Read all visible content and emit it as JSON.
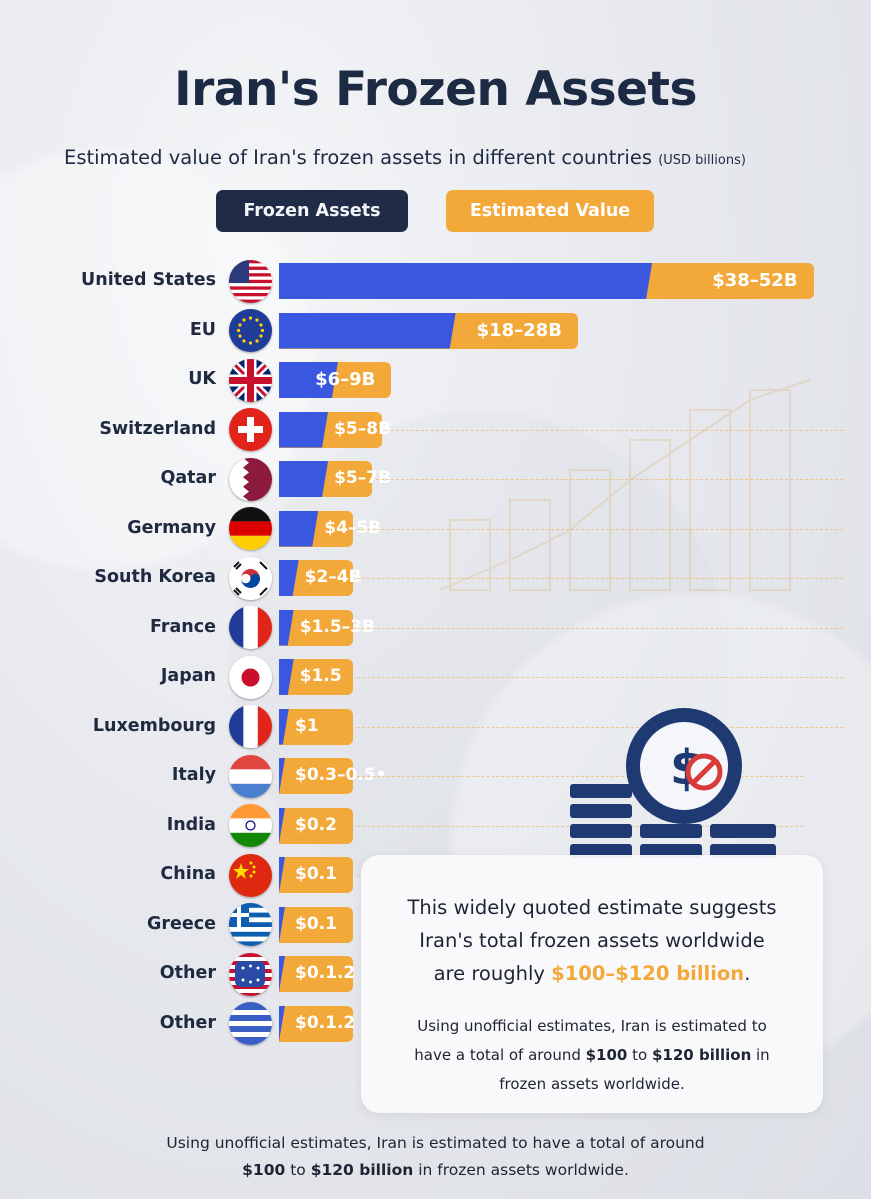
{
  "title": "Iran's Frozen Assets",
  "subtitle": "Estimated value of Iran's frozen assets in different countries",
  "subtitle_unit": "(USD billions)",
  "legend": {
    "frozen": "Frozen Assets",
    "estimated": "Estimated Value"
  },
  "colors": {
    "frozen": "#3a57e0",
    "estimated": "#f2a93a",
    "title": "#1d2a44"
  },
  "chart_data": {
    "type": "bar",
    "orientation": "horizontal",
    "title": "Iran's Frozen Assets",
    "subtitle": "Estimated value of Iran's frozen assets in different countries (USD billions)",
    "series": [
      {
        "name": "Frozen Assets",
        "key": "low"
      },
      {
        "name": "Estimated Value",
        "key": "high"
      }
    ],
    "xmax": 55,
    "rows": [
      {
        "country": "United States",
        "flag": "us-flag-icon",
        "label": "$38–52B",
        "low": 38,
        "high": 52
      },
      {
        "country": "EU",
        "flag": "eu-flag-icon",
        "label": "$18–28B",
        "low": 18,
        "high": 28
      },
      {
        "country": "UK",
        "flag": "uk-flag-icon",
        "label": "$6–9B",
        "low": 6,
        "high": 9
      },
      {
        "country": "Switzerland",
        "flag": "switzerland-flag-icon",
        "label": "$5–8B",
        "low": 5,
        "high": 8
      },
      {
        "country": "Qatar",
        "flag": "qatar-flag-icon",
        "label": "$5–7B",
        "low": 5,
        "high": 7
      },
      {
        "country": "Germany",
        "flag": "germany-flag-icon",
        "label": "$4–5B",
        "low": 4,
        "high": 5
      },
      {
        "country": "South Korea",
        "flag": "south-korea-flag-icon",
        "label": "$2–4B",
        "low": 2,
        "high": 4
      },
      {
        "country": "France",
        "flag": "france-flag-icon",
        "label": "$1.5–3B",
        "low": 1.5,
        "high": 3
      },
      {
        "country": "Japan",
        "flag": "japan-flag-icon",
        "label": "$1.5",
        "low": 1.5,
        "high": 1.5
      },
      {
        "country": "Luxembourg",
        "flag": "luxembourg-flag-icon",
        "label": "$1",
        "low": 1,
        "high": 1
      },
      {
        "country": "Italy",
        "flag": "italy-flag-icon",
        "label": "$0.3–0.5•",
        "low": 0.3,
        "high": 0.5
      },
      {
        "country": "India",
        "flag": "india-flag-icon",
        "label": "$0.2",
        "low": 0.2,
        "high": 0.2
      },
      {
        "country": "China",
        "flag": "china-flag-icon",
        "label": "$0.1",
        "low": 0.1,
        "high": 0.1
      },
      {
        "country": "Greece",
        "flag": "greece-flag-icon",
        "label": "$0.1",
        "low": 0.1,
        "high": 0.1
      },
      {
        "country": "Other",
        "flag": "other-flag-icon",
        "label": "$0.1.2",
        "low": 0.1,
        "high": 0.2
      },
      {
        "country": "Other",
        "flag": "other-flag-icon-2",
        "label": "$0.1.2",
        "low": 0.1,
        "high": 0.2
      }
    ]
  },
  "info": {
    "main_line1": "This widely quoted estimate suggests",
    "main_line2": "Iran's total frozen assets worldwide",
    "main_line3_pre": "are roughly ",
    "main_highlight": "$100–$120 billion",
    "main_line3_post": ".",
    "sub_line1": "Using unofficial estimates, Iran is estimated to",
    "sub_line2_pre": "have a total of around ",
    "sub_bold1": "$100",
    "sub_mid": " to ",
    "sub_bold2": "$120 billion",
    "sub_line2_post": " in",
    "sub_line3": "frozen assets worldwide."
  },
  "footer": {
    "line1": "Using unofficial estimates, Iran is estimated to have a total of around",
    "bold1": "$100",
    "mid": " to ",
    "bold2": "$120 billion",
    "post": " in frozen assets worldwide."
  }
}
